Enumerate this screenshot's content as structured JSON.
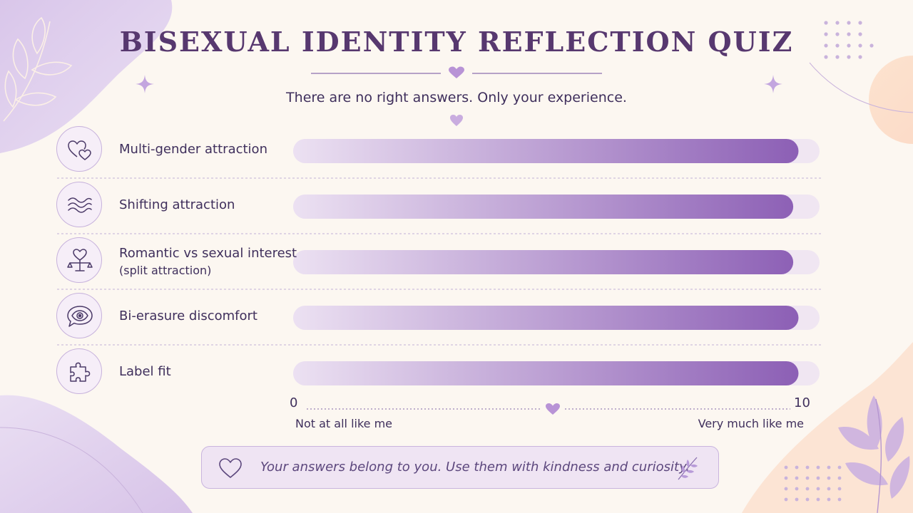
{
  "title": "BISEXUAL IDENTITY REFLECTION QUIZ",
  "subtitle": "There are no right answers. Only your experience.",
  "colors": {
    "bar_start": "#ece1f2",
    "bar_end": "#8c5fb5",
    "track": "#f0e6f2",
    "accent": "#b893d6",
    "title": "#57386f"
  },
  "chart_data": {
    "type": "bar",
    "orientation": "horizontal",
    "categories": [
      "Multi-gender attraction",
      "Shifting attraction",
      "Romantic vs sexual interest (split attraction)",
      "Bi-erasure discomfort",
      "Label fit"
    ],
    "category_lines": [
      [
        "Multi-gender attraction"
      ],
      [
        "Shifting attraction"
      ],
      [
        "Romantic vs sexual interest",
        "(split attraction)"
      ],
      [
        "Bi-erasure discomfort"
      ],
      [
        "Label fit"
      ]
    ],
    "icons": [
      "hearts-icon",
      "waves-icon",
      "heart-scale-icon",
      "eye-speech-icon",
      "puzzle-icon"
    ],
    "values": [
      9.6,
      9.5,
      9.5,
      9.6,
      9.6
    ],
    "xlim": [
      0,
      10
    ],
    "xticks": [
      "0",
      "10"
    ],
    "scale_labels": {
      "min": "Not at all like me",
      "max": "Very much like me"
    },
    "grid": false
  },
  "footer": {
    "text": "Your answers belong to you. Use them with kindness and curiosity."
  }
}
